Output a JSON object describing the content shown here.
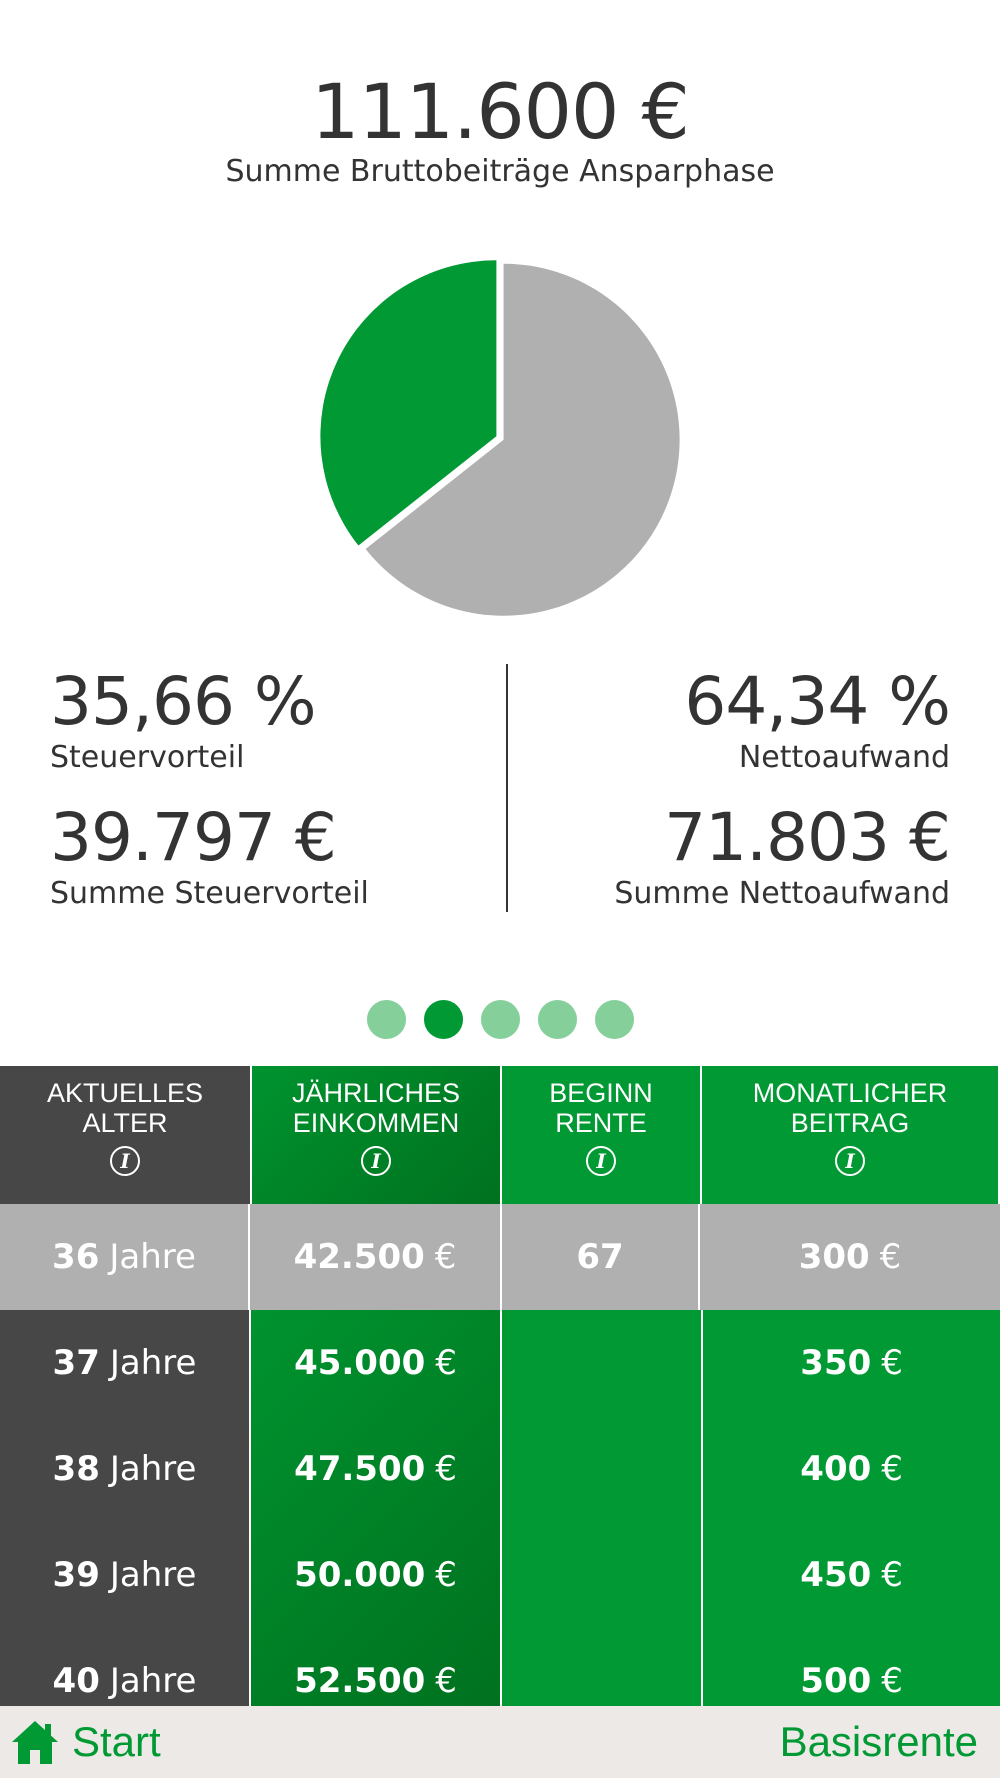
{
  "summary": {
    "total_amount": "111.600 €",
    "total_label": "Summe Bruttobeiträge Ansparphase"
  },
  "chart_data": {
    "type": "pie",
    "slices": [
      {
        "label": "Steuervorteil",
        "value": 35.66,
        "color": "#009933"
      },
      {
        "label": "Nettoaufwand",
        "value": 64.34,
        "color": "#b0b0b0"
      }
    ]
  },
  "stats": {
    "tax_percent": "35,66 %",
    "tax_percent_label": "Steuervorteil",
    "tax_sum": "39.797 €",
    "tax_sum_label": "Summe Steuervorteil",
    "net_percent": "64,34 %",
    "net_percent_label": "Nettoaufwand",
    "net_sum": "71.803 €",
    "net_sum_label": "Summe Nettoaufwand"
  },
  "pager": {
    "count": 5,
    "active_index": 1
  },
  "table": {
    "headers": [
      {
        "line1": "AKTUELLES",
        "line2": "ALTER"
      },
      {
        "line1": "JÄHRLICHES",
        "line2": "EINKOMMEN"
      },
      {
        "line1": "BEGINN",
        "line2": "RENTE"
      },
      {
        "line1": "MONATLICHER",
        "line2": "BEITRAG"
      }
    ],
    "info_glyph": "i",
    "selected": {
      "age": "36",
      "age_unit": "Jahre",
      "income": "42.500",
      "income_unit": "€",
      "start": "67",
      "contrib": "300",
      "contrib_unit": "€"
    },
    "rows": [
      {
        "age": "37",
        "age_unit": "Jahre",
        "income": "45.000",
        "income_unit": "€",
        "contrib": "350",
        "contrib_unit": "€"
      },
      {
        "age": "38",
        "age_unit": "Jahre",
        "income": "47.500",
        "income_unit": "€",
        "contrib": "400",
        "contrib_unit": "€"
      },
      {
        "age": "39",
        "age_unit": "Jahre",
        "income": "50.000",
        "income_unit": "€",
        "contrib": "450",
        "contrib_unit": "€"
      },
      {
        "age": "40",
        "age_unit": "Jahre",
        "income": "52.500",
        "income_unit": "€",
        "contrib": "500",
        "contrib_unit": "€"
      }
    ]
  },
  "footer": {
    "home_icon": "home-icon",
    "start_label": "Start",
    "title": "Basisrente"
  },
  "colors": {
    "accent": "#009933",
    "dark_column": "#474747",
    "selected_row": "#b0b0b0",
    "dot_inactive": "#85cf9b",
    "footer_bg": "#ede9e7"
  }
}
